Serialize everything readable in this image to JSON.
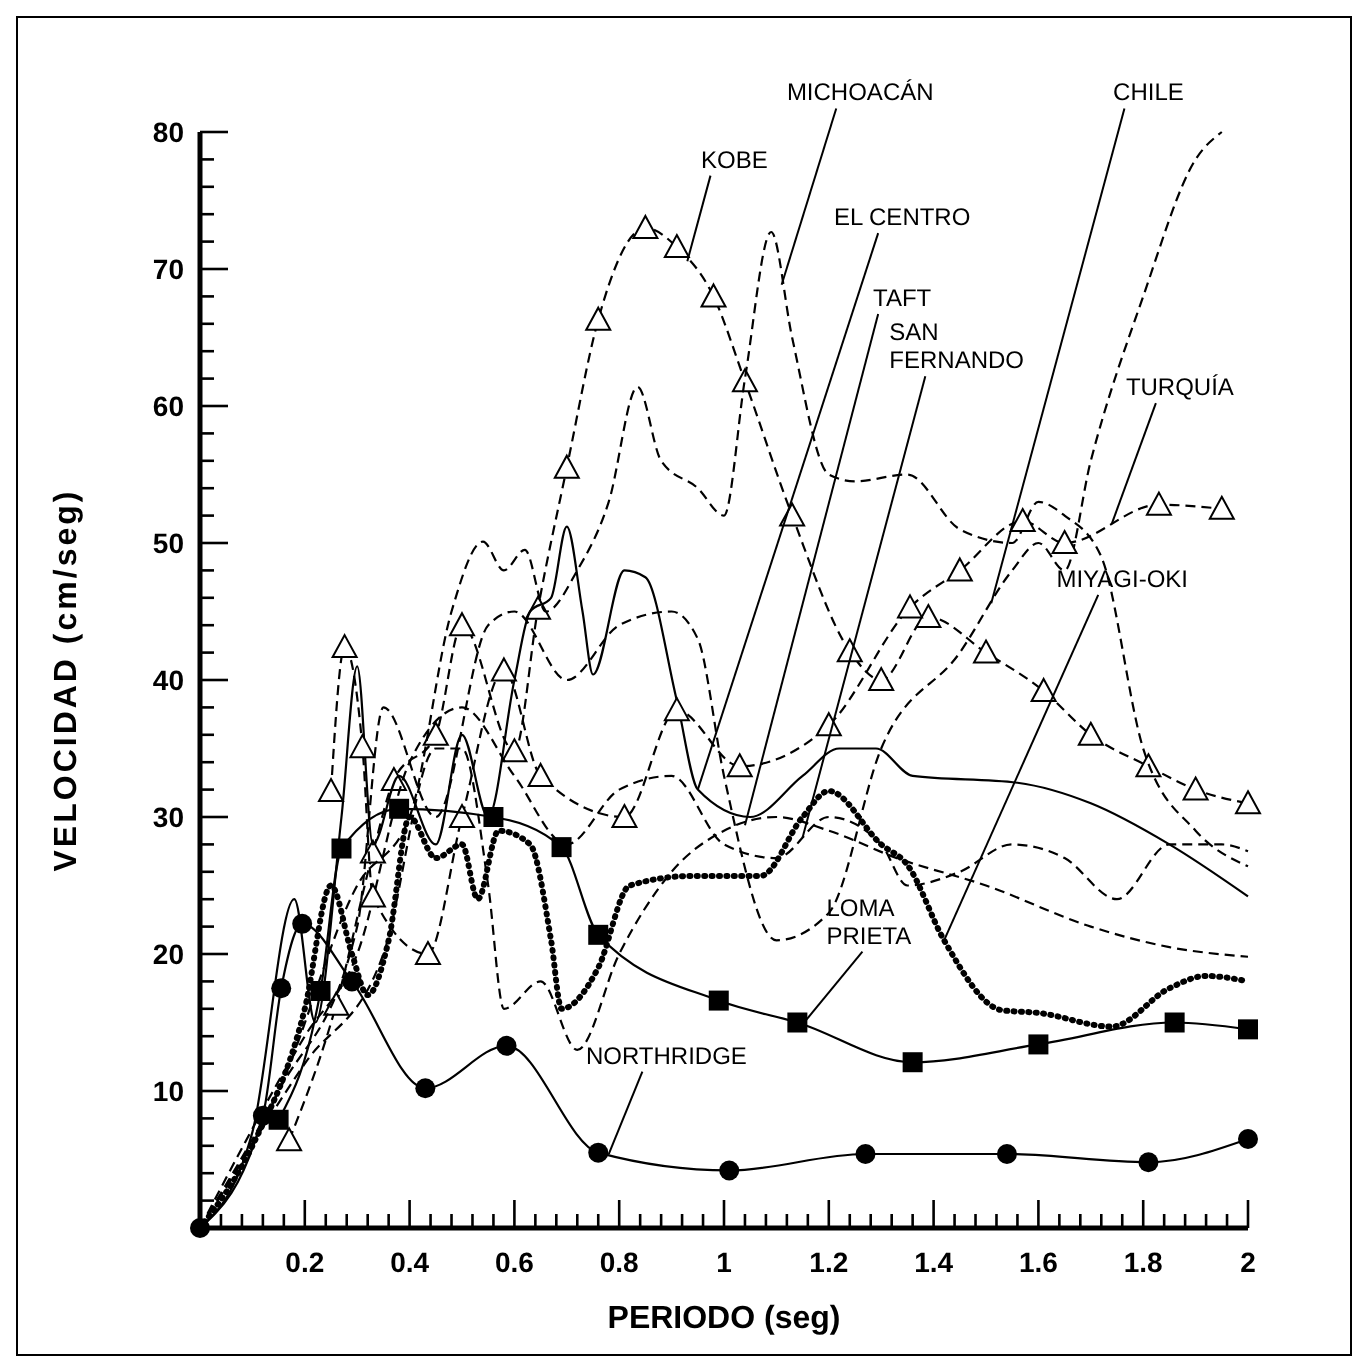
{
  "chart_data": {
    "type": "line",
    "xlabel": "PERIODO (seg)",
    "ylabel": "VELOCIDAD (cm/seg)",
    "xlim": [
      0,
      2
    ],
    "ylim": [
      0,
      80
    ],
    "xticks": [
      {
        "value": 0.04,
        "label": null
      },
      {
        "value": 0.08,
        "label": null
      },
      {
        "value": 0.12,
        "label": null
      },
      {
        "value": 0.16,
        "label": null
      },
      0.2,
      {
        "value": 0.24,
        "label": null
      },
      {
        "value": 0.28,
        "label": null
      },
      {
        "value": 0.32,
        "label": null
      },
      {
        "value": 0.36,
        "label": null
      },
      0.4,
      {
        "value": 0.44,
        "label": null
      },
      {
        "value": 0.48,
        "label": null
      },
      {
        "value": 0.52,
        "label": null
      },
      {
        "value": 0.56,
        "label": null
      },
      0.6,
      {
        "value": 0.64,
        "label": null
      },
      {
        "value": 0.68,
        "label": null
      },
      {
        "value": 0.72,
        "label": null
      },
      {
        "value": 0.76,
        "label": null
      },
      0.8,
      {
        "value": 0.84,
        "label": null
      },
      {
        "value": 0.88,
        "label": null
      },
      {
        "value": 0.92,
        "label": null
      },
      {
        "value": 0.96,
        "label": null
      },
      1,
      {
        "value": 1.04,
        "label": null
      },
      {
        "value": 1.08,
        "label": null
      },
      {
        "value": 1.12,
        "label": null
      },
      {
        "value": 1.16,
        "label": null
      },
      1.2,
      {
        "value": 1.24,
        "label": null
      },
      {
        "value": 1.28,
        "label": null
      },
      {
        "value": 1.32,
        "label": null
      },
      {
        "value": 1.36,
        "label": null
      },
      1.4,
      {
        "value": 1.44,
        "label": null
      },
      {
        "value": 1.48,
        "label": null
      },
      {
        "value": 1.52,
        "label": null
      },
      {
        "value": 1.56,
        "label": null
      },
      1.6,
      {
        "value": 1.64,
        "label": null
      },
      {
        "value": 1.68,
        "label": null
      },
      {
        "value": 1.72,
        "label": null
      },
      {
        "value": 1.76,
        "label": null
      },
      1.8,
      {
        "value": 1.84,
        "label": null
      },
      {
        "value": 1.88,
        "label": null
      },
      {
        "value": 1.92,
        "label": null
      },
      {
        "value": 1.96,
        "label": null
      },
      2
    ],
    "yticks": [
      {
        "value": 2,
        "label": null
      },
      {
        "value": 4,
        "label": null
      },
      {
        "value": 6,
        "label": null
      },
      {
        "value": 8,
        "label": null
      },
      10,
      {
        "value": 12,
        "label": null
      },
      {
        "value": 14,
        "label": null
      },
      {
        "value": 16,
        "label": null
      },
      {
        "value": 18,
        "label": null
      },
      20,
      {
        "value": 22,
        "label": null
      },
      {
        "value": 24,
        "label": null
      },
      {
        "value": 26,
        "label": null
      },
      {
        "value": 28,
        "label": null
      },
      30,
      {
        "value": 32,
        "label": null
      },
      {
        "value": 34,
        "label": null
      },
      {
        "value": 36,
        "label": null
      },
      {
        "value": 38,
        "label": null
      },
      40,
      {
        "value": 42,
        "label": null
      },
      {
        "value": 44,
        "label": null
      },
      {
        "value": 46,
        "label": null
      },
      {
        "value": 48,
        "label": null
      },
      50,
      {
        "value": 52,
        "label": null
      },
      {
        "value": 54,
        "label": null
      },
      {
        "value": 56,
        "label": null
      },
      {
        "value": 58,
        "label": null
      },
      60,
      {
        "value": 62,
        "label": null
      },
      {
        "value": 64,
        "label": null
      },
      {
        "value": 66,
        "label": null
      },
      {
        "value": 68,
        "label": null
      },
      70,
      {
        "value": 72,
        "label": null
      },
      {
        "value": 74,
        "label": null
      },
      {
        "value": 76,
        "label": null
      },
      {
        "value": 78,
        "label": null
      },
      80
    ],
    "series": [
      {
        "name": "KOBE",
        "color": "#000000",
        "line_style": "dashed",
        "marker": "triangle",
        "x": [
          0.17,
          0.26,
          0.33,
          0.37,
          0.45,
          0.5,
          0.6,
          0.645,
          0.7,
          0.76,
          0.85,
          0.91,
          0.98,
          1.04,
          1.13,
          1.24,
          1.3,
          1.39,
          1.5,
          1.61,
          1.7,
          1.81,
          1.9,
          2
        ],
        "values": [
          6.4,
          16.3,
          27.4,
          32.7,
          36,
          44,
          34.8,
          45.2,
          55.5,
          66.3,
          73,
          71.6,
          68,
          61.8,
          52,
          42.1,
          40,
          44.6,
          42,
          39.2,
          36,
          33.7,
          32,
          31
        ]
      },
      {
        "name": "MICHOACÁN",
        "color": "#000000",
        "line_style": "dashed",
        "marker": "none",
        "x": [
          0,
          0.15,
          0.3,
          0.4,
          0.48,
          0.54,
          0.58,
          0.62,
          0.66,
          0.72,
          0.78,
          0.835,
          0.88,
          0.95,
          1.0,
          1.04,
          1.09,
          1.13,
          1.2,
          1.25,
          1.35,
          1.45,
          1.55,
          1.6,
          1.65,
          1.72,
          1.8,
          1.9,
          2
        ],
        "values": [
          0,
          10,
          25,
          30,
          45,
          50.1,
          48,
          49.5,
          45,
          48,
          53,
          61.4,
          56,
          54,
          52,
          62,
          72.7,
          65,
          55,
          54.5,
          55,
          51,
          50,
          53,
          52,
          49,
          35,
          29,
          26.4
        ]
      },
      {
        "name": "EL CENTRO",
        "color": "#000000",
        "line_style": "solid",
        "marker": "none",
        "x": [
          0,
          0.1,
          0.18,
          0.22,
          0.27,
          0.3,
          0.33,
          0.38,
          0.45,
          0.5,
          0.55,
          0.6,
          0.63,
          0.67,
          0.7,
          0.73,
          0.75,
          0.81,
          0.85,
          0.91,
          0.95,
          1.05,
          1.15,
          1.22,
          1.29,
          1.36,
          1.56,
          1.7,
          1.85,
          2
        ],
        "values": [
          0,
          7,
          24,
          15,
          30,
          41,
          28,
          33,
          28,
          36,
          30,
          40,
          45,
          46,
          51.2,
          45,
          40.4,
          48,
          47.5,
          38.5,
          32,
          30,
          33,
          35,
          35,
          33,
          32.5,
          31,
          28,
          24.2
        ]
      },
      {
        "name": "TAFT",
        "color": "#000000",
        "line_style": "dashed",
        "marker": "none",
        "x": [
          0,
          0.2,
          0.35,
          0.45,
          0.5,
          0.55,
          0.58,
          0.65,
          0.72,
          0.8,
          0.9,
          1.0,
          1.1,
          1.2,
          1.33,
          1.5,
          1.7,
          1.85,
          2
        ],
        "values": [
          0,
          12,
          20,
          35,
          35,
          25,
          16,
          18,
          13,
          20,
          26,
          29,
          30,
          29,
          27,
          25,
          22,
          20.5,
          19.8
        ]
      },
      {
        "name": "SAN\nFERNANDO",
        "color": "#000000",
        "line_style": "dashed",
        "marker": "none",
        "x": [
          0,
          0.2,
          0.3,
          0.4,
          0.5,
          0.6,
          0.7,
          0.8,
          0.9,
          1.0,
          1.1,
          1.2,
          1.3,
          1.35,
          1.45,
          1.55,
          1.65,
          1.75,
          1.85,
          1.95,
          2
        ],
        "values": [
          0,
          14,
          20,
          34,
          38,
          33,
          28,
          32,
          33,
          28,
          27,
          30,
          28,
          25,
          26,
          28,
          27,
          24,
          28,
          28,
          27.5
        ]
      },
      {
        "name": "CHILE",
        "color": "#000000",
        "line_style": "dashed",
        "marker": "none",
        "x": [
          0,
          0.15,
          0.3,
          0.35,
          0.45,
          0.55,
          0.6,
          0.7,
          0.8,
          0.9,
          0.95,
          1.0,
          1.1,
          1.2,
          1.3,
          1.45,
          1.55,
          1.6,
          1.65,
          1.7,
          1.8,
          1.9,
          1.95
        ],
        "values": [
          0,
          10,
          22,
          38,
          30,
          44,
          45,
          40,
          44,
          45,
          43,
          33,
          21,
          23,
          35,
          42,
          48,
          50,
          48,
          56,
          68,
          78,
          80
        ]
      },
      {
        "name": "TURQUÍA",
        "color": "#000000",
        "line_style": "dashed",
        "marker": "triangle",
        "x": [
          0.25,
          0.276,
          0.31,
          0.33,
          0.435,
          0.5,
          0.58,
          0.65,
          0.81,
          0.91,
          1.03,
          1.2,
          1.355,
          1.45,
          1.57,
          1.65,
          1.83,
          1.95
        ],
        "values": [
          31.9,
          42.4,
          35.1,
          24.2,
          20,
          30,
          40.7,
          33,
          30,
          37.8,
          33.7,
          36.7,
          45.3,
          48,
          51.6,
          50,
          52.8,
          52.5
        ]
      },
      {
        "name": "MIYAGI-OKI",
        "color": "#000000",
        "line_style": "dotted",
        "marker": "none",
        "x": [
          0,
          0.1,
          0.2,
          0.25,
          0.29,
          0.32,
          0.36,
          0.4,
          0.45,
          0.5,
          0.53,
          0.57,
          0.63,
          0.67,
          0.69,
          0.76,
          0.82,
          0.94,
          1.07,
          1.15,
          1.2,
          1.3,
          1.35,
          1.42,
          1.53,
          1.6,
          1.74,
          1.85,
          1.92,
          2
        ],
        "values": [
          0,
          6,
          16,
          25,
          20,
          17,
          21,
          30,
          27,
          28,
          24,
          29,
          28,
          21,
          16,
          19,
          25,
          25.7,
          25.7,
          30,
          31.9,
          28,
          26.5,
          21,
          15.9,
          15.7,
          14.7,
          17.5,
          18.4,
          18
        ]
      },
      {
        "name": "LOMA\nPRIETA",
        "color": "#000000",
        "line_style": "solid",
        "marker": "square",
        "x": [
          0.15,
          0.23,
          0.27,
          0.38,
          0.56,
          0.69,
          0.76,
          0.99,
          1.14,
          1.36,
          1.6,
          1.86,
          2
        ],
        "values": [
          7.9,
          17.3,
          27.7,
          30.6,
          30,
          27.8,
          21.4,
          16.6,
          15,
          12.1,
          13.4,
          15,
          14.5
        ]
      },
      {
        "name": "NORTHRIDGE",
        "color": "#000000",
        "line_style": "solid",
        "marker": "circle",
        "x": [
          0,
          0.12,
          0.155,
          0.195,
          0.29,
          0.43,
          0.585,
          0.76,
          1.01,
          1.27,
          1.54,
          1.81,
          2
        ],
        "values": [
          0,
          8.2,
          17.5,
          22.2,
          18,
          10.2,
          13.3,
          5.5,
          4.2,
          5.4,
          5.4,
          4.8,
          6.5
        ]
      }
    ]
  }
}
